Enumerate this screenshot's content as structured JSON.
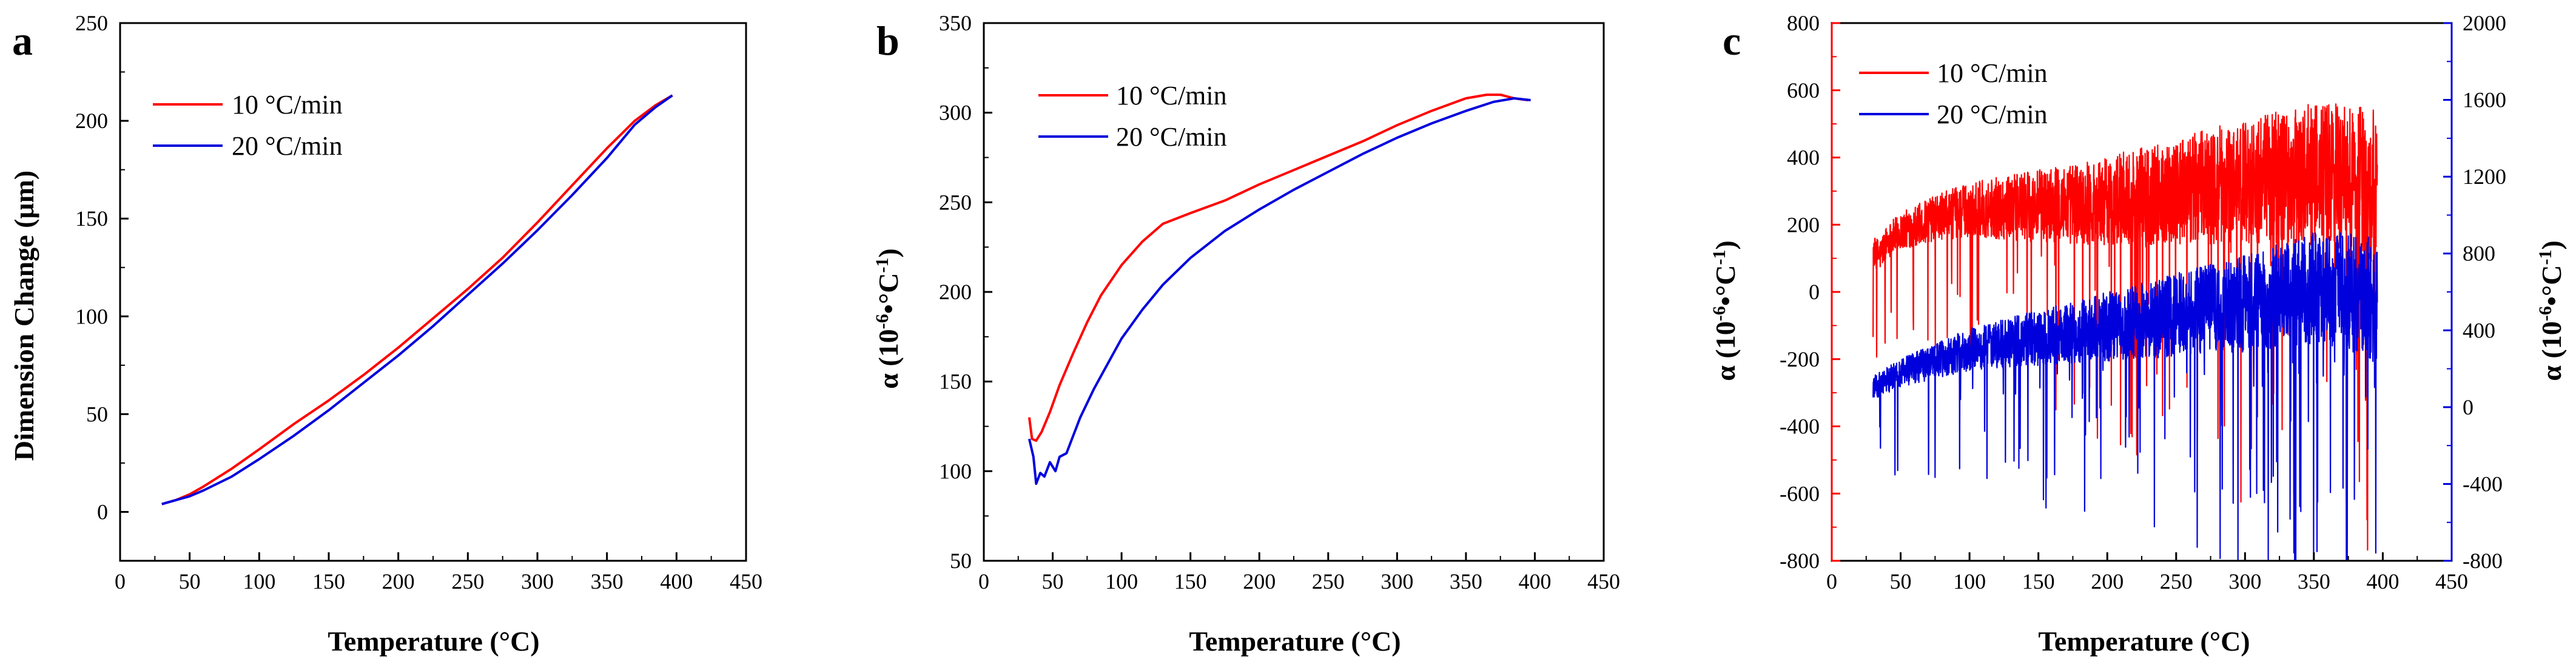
{
  "colors": {
    "red": "#ff0000",
    "blue": "#0000dd",
    "axis": "#000000",
    "background": "#ffffff"
  },
  "chart_data": [
    {
      "panel": "a",
      "type": "line",
      "xlabel": "Temperature (°C)",
      "ylabel": "Dimension Change (μm)",
      "xlim": [
        0,
        450
      ],
      "ylim": [
        -25,
        250
      ],
      "xticks": [
        0,
        50,
        100,
        150,
        200,
        250,
        300,
        350,
        400,
        450
      ],
      "yticks": [
        0,
        50,
        100,
        150,
        200,
        250
      ],
      "xticklabels": [
        "0",
        "50",
        "100",
        "150",
        "200",
        "250",
        "300",
        "350",
        "400",
        "450"
      ],
      "yticklabels": [
        "0",
        "50",
        "100",
        "150",
        "200",
        "250"
      ],
      "legend_position": "top-left",
      "series": [
        {
          "name": "10 °C/min",
          "color": "#ff0000",
          "x": [
            30,
            40,
            50,
            60,
            80,
            100,
            125,
            150,
            175,
            200,
            225,
            250,
            275,
            300,
            325,
            350,
            370,
            385,
            397
          ],
          "y": [
            4,
            6,
            9,
            13,
            22,
            32,
            45,
            57,
            70,
            84,
            99,
            114,
            130,
            148,
            167,
            186,
            200,
            208,
            213
          ]
        },
        {
          "name": "20 °C/min",
          "color": "#0000dd",
          "x": [
            30,
            40,
            50,
            60,
            80,
            100,
            125,
            150,
            175,
            200,
            225,
            250,
            275,
            300,
            325,
            350,
            370,
            385,
            397
          ],
          "y": [
            4,
            6,
            8,
            11,
            18,
            27,
            39,
            52,
            66,
            80,
            95,
            111,
            127,
            144,
            162,
            181,
            198,
            207,
            213
          ]
        }
      ]
    },
    {
      "panel": "b",
      "type": "line",
      "xlabel": "Temperature (°C)",
      "ylabel": "α (10⁻⁶•°C⁻¹)",
      "xlim": [
        0,
        450
      ],
      "ylim": [
        50,
        350
      ],
      "xticks": [
        0,
        50,
        100,
        150,
        200,
        250,
        300,
        350,
        400,
        450
      ],
      "yticks": [
        50,
        100,
        150,
        200,
        250,
        300,
        350
      ],
      "xticklabels": [
        "0",
        "50",
        "100",
        "150",
        "200",
        "250",
        "300",
        "350",
        "400",
        "450"
      ],
      "yticklabels": [
        "50",
        "100",
        "150",
        "200",
        "250",
        "300",
        "350"
      ],
      "legend_position": "top-left",
      "series": [
        {
          "name": "10 °C/min",
          "color": "#ff0000",
          "x": [
            33,
            35,
            38,
            42,
            48,
            55,
            65,
            75,
            85,
            100,
            115,
            130,
            150,
            175,
            200,
            225,
            250,
            275,
            300,
            325,
            350,
            365,
            375,
            385,
            395
          ],
          "y": [
            130,
            118,
            117,
            122,
            133,
            148,
            166,
            183,
            198,
            215,
            228,
            238,
            244,
            251,
            260,
            268,
            276,
            284,
            293,
            301,
            308,
            310,
            310,
            308,
            307
          ]
        },
        {
          "name": "20 °C/min",
          "color": "#0000dd",
          "x": [
            33,
            36,
            38,
            41,
            44,
            48,
            52,
            55,
            60,
            65,
            70,
            80,
            90,
            100,
            115,
            130,
            150,
            175,
            200,
            225,
            250,
            275,
            300,
            325,
            350,
            370,
            385,
            397
          ],
          "y": [
            118,
            108,
            93,
            99,
            97,
            105,
            100,
            108,
            110,
            120,
            130,
            146,
            160,
            174,
            190,
            204,
            219,
            234,
            246,
            257,
            267,
            277,
            286,
            294,
            301,
            306,
            308,
            307
          ]
        }
      ]
    },
    {
      "panel": "c",
      "type": "line",
      "xlabel": "Temperature (°C)",
      "ylabel_left": "α (10⁻⁶•°C⁻¹)",
      "ylabel_right": "α (10⁻⁶•°C⁻¹)",
      "xlim": [
        0,
        450
      ],
      "ylim_left": [
        -800,
        800
      ],
      "ylim_right": [
        -800,
        2000
      ],
      "xticks": [
        0,
        50,
        100,
        150,
        200,
        250,
        300,
        350,
        400,
        450
      ],
      "yticks_left": [
        -800,
        -600,
        -400,
        -200,
        0,
        200,
        400,
        600,
        800
      ],
      "yticks_right": [
        -800,
        -400,
        0,
        400,
        800,
        1200,
        1600,
        2000
      ],
      "xticklabels": [
        "0",
        "50",
        "100",
        "150",
        "200",
        "250",
        "300",
        "350",
        "400",
        "450"
      ],
      "yticklabels_left": [
        "-800",
        "-600",
        "-400",
        "-200",
        "0",
        "200",
        "400",
        "600",
        "800"
      ],
      "yticklabels_right": [
        "-800",
        "-400",
        "0",
        "400",
        "800",
        "1200",
        "1600",
        "2000"
      ],
      "legend_position": "top-left",
      "series": [
        {
          "name": "10 °C/min",
          "color": "#ff0000",
          "axis": "left",
          "noisy": true,
          "x": [
            30,
            35,
            40,
            50,
            75,
            100,
            150,
            200,
            250,
            300,
            330,
            350,
            370,
            390,
            396
          ],
          "y": [
            120,
            110,
            150,
            180,
            220,
            245,
            255,
            270,
            300,
            330,
            345,
            350,
            340,
            320,
            300
          ]
        },
        {
          "name": "20 °C/min",
          "color": "#0000dd",
          "axis": "right",
          "noisy": true,
          "x": [
            30,
            35,
            40,
            50,
            75,
            100,
            150,
            200,
            250,
            300,
            330,
            350,
            370,
            390,
            396
          ],
          "y": [
            100,
            120,
            140,
            180,
            240,
            300,
            360,
            420,
            480,
            540,
            590,
            620,
            610,
            570,
            520
          ]
        }
      ]
    }
  ]
}
